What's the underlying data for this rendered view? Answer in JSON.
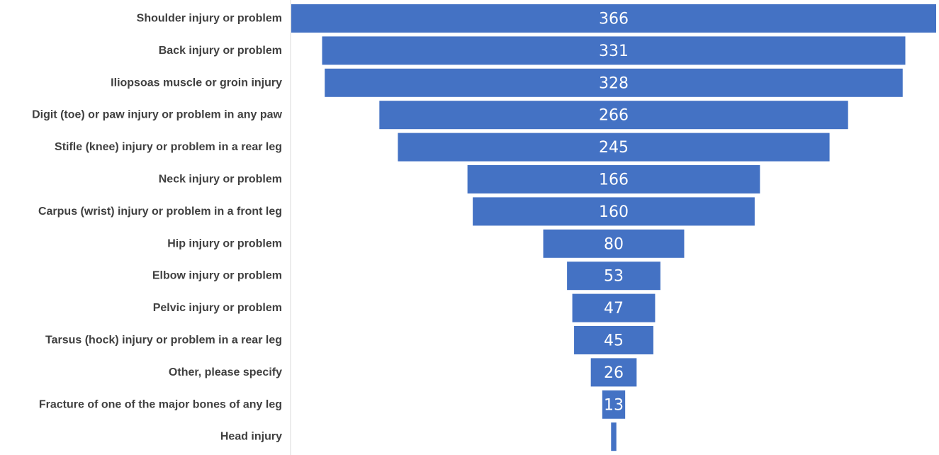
{
  "chart_data": {
    "type": "bar",
    "orientation": "horizontal-funnel",
    "title": "",
    "xlabel": "",
    "ylabel": "",
    "categories": [
      "Shoulder injury or problem",
      "Back injury or problem",
      "Iliopsoas muscle or groin injury",
      "Digit (toe) or paw injury or problem in any paw",
      "Stifle (knee) injury or problem in a rear leg",
      "Neck injury or problem",
      "Carpus (wrist) injury or problem in a front leg",
      "Hip injury or problem",
      "Elbow injury or problem",
      "Pelvic injury or problem",
      "Tarsus (hock) injury or problem in a rear leg",
      "Other, please specify",
      "Fracture of one of the major bones of any leg",
      "Head injury"
    ],
    "values": [
      366,
      331,
      328,
      266,
      245,
      166,
      160,
      80,
      53,
      47,
      45,
      26,
      13,
      3
    ],
    "data_labels": [
      "366",
      "331",
      "328",
      "266",
      "245",
      "166",
      "160",
      "80",
      "53",
      "47",
      "45",
      "26",
      "13",
      ""
    ],
    "xlim": [
      0,
      366
    ],
    "grid": false,
    "legend": "none",
    "bar_color": "#4472C4",
    "axis_color": "#D9D9D9"
  }
}
